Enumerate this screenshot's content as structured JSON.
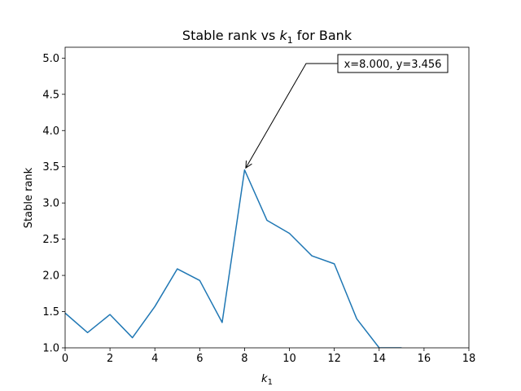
{
  "chart_data": {
    "type": "line",
    "title_prefix": "Stable rank vs ",
    "title_var": "k",
    "title_sub": "1",
    "title_suffix": " for Bank",
    "xlabel_var": "k",
    "xlabel_sub": "1",
    "ylabel": "Stable rank",
    "xlim": [
      0,
      18
    ],
    "ylim": [
      1.0,
      5.15
    ],
    "xticks": [
      0,
      2,
      4,
      6,
      8,
      10,
      12,
      14,
      16,
      18
    ],
    "xtick_labels": [
      "0",
      "2",
      "4",
      "6",
      "8",
      "10",
      "12",
      "14",
      "16",
      "18"
    ],
    "yticks": [
      1.0,
      1.5,
      2.0,
      2.5,
      3.0,
      3.5,
      4.0,
      4.5,
      5.0
    ],
    "ytick_labels": [
      "1.0",
      "1.5",
      "2.0",
      "2.5",
      "3.0",
      "3.5",
      "4.0",
      "4.5",
      "5.0"
    ],
    "grid": false,
    "series": [
      {
        "color": "#1f77b4",
        "x": [
          0,
          1,
          2,
          3,
          4,
          5,
          6,
          7,
          8,
          9,
          10,
          11,
          12,
          13,
          14,
          15
        ],
        "y": [
          1.48,
          1.21,
          1.46,
          1.14,
          1.57,
          2.09,
          1.93,
          1.35,
          3.456,
          2.76,
          2.58,
          2.27,
          2.16,
          1.4,
          1.0,
          1.0
        ]
      }
    ],
    "annotation": {
      "text": "x=8.000, y=3.456",
      "point": [
        8.0,
        3.456
      ]
    }
  }
}
